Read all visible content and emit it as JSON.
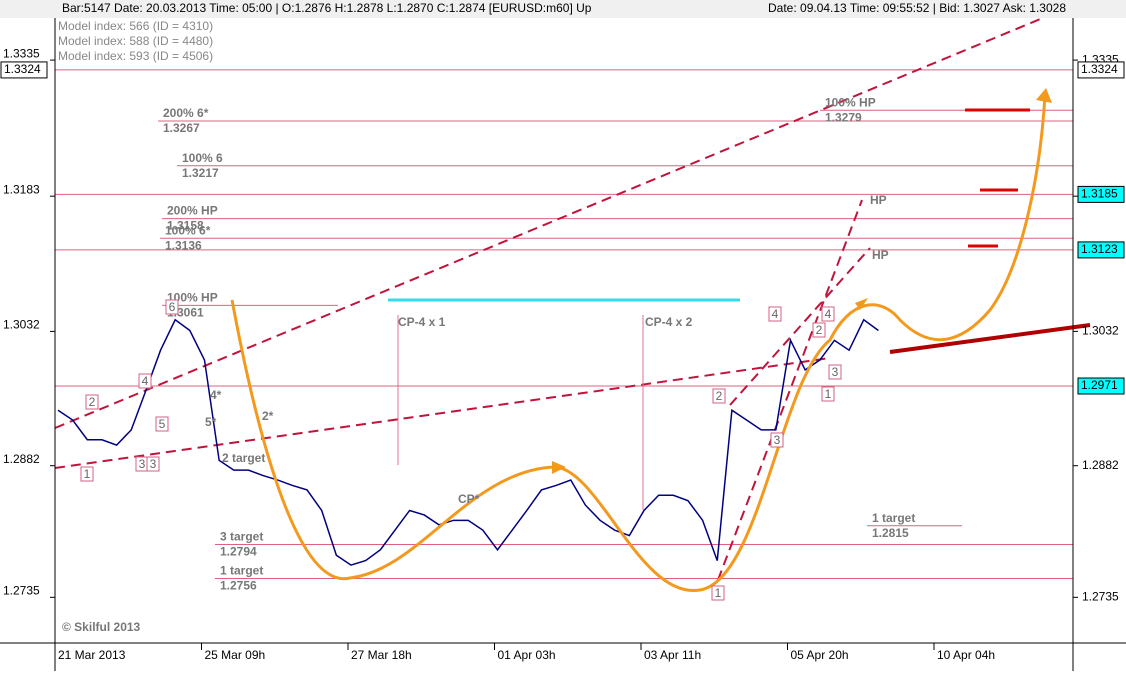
{
  "chart_data": {
    "type": "line",
    "header_left": "Bar:5147  Date: 20.03.2013  Time: 05:00  | O:1.2876 H:1.2878 L:1.2870 C:1.2874   [EURUSD:m60]  Up",
    "header_right": "Date: 09.04.13  Time: 09:55:52  | Bid: 1.3027  Ask: 1.3028",
    "model_lines": [
      "Model index: 566  (ID = 4310)",
      "Model index: 588  (ID = 4480)",
      "Model index: 593  (ID = 4506)"
    ],
    "categories": [
      "21 Mar 2013",
      null,
      null,
      null,
      null,
      null,
      null,
      null,
      null,
      null,
      "25 Mar 09h",
      null,
      null,
      null,
      null,
      null,
      null,
      null,
      null,
      null,
      "27 Mar 18h",
      null,
      null,
      null,
      null,
      null,
      null,
      null,
      null,
      null,
      "01 Apr 03h",
      null,
      null,
      null,
      null,
      null,
      null,
      null,
      null,
      null,
      "03 Apr 11h",
      null,
      null,
      null,
      null,
      null,
      null,
      null,
      null,
      null,
      "05 Apr 20h",
      null,
      null,
      null,
      null,
      null,
      null,
      null,
      null,
      null,
      "10 Apr 04h",
      null,
      null,
      null,
      null,
      null,
      null,
      null,
      null,
      null
    ],
    "series": [
      {
        "name": "EURUSD",
        "color": "#000080",
        "values": [
          1.2944,
          1.2933,
          1.2911,
          1.2911,
          1.2905,
          1.2922,
          1.2966,
          1.3011,
          1.3045,
          1.3033,
          1.3,
          1.2888,
          1.2877,
          1.2877,
          1.2871,
          1.2866,
          1.286,
          1.2855,
          1.2832,
          1.2782,
          1.2771,
          1.2776,
          1.2788,
          1.281,
          1.2832,
          1.2827,
          1.2816,
          1.2821,
          1.2821,
          1.281,
          1.2788,
          1.281,
          1.2832,
          1.2855,
          1.286,
          1.2866,
          1.2838,
          1.2821,
          1.281,
          1.2804,
          1.2832,
          1.2849,
          1.2849,
          1.2843,
          1.2821,
          1.2776,
          1.2944,
          1.2933,
          1.2922,
          1.2922,
          1.3022,
          1.2989,
          1.3,
          1.3022,
          1.3011,
          1.3045,
          1.3033,
          null,
          null,
          null,
          null,
          null,
          null,
          null,
          null,
          null,
          null,
          null,
          null,
          null
        ]
      }
    ],
    "ylim": [
      1.2684,
      1.3382
    ],
    "yticks": [
      1.3335,
      1.3183,
      1.3032,
      1.2882,
      1.2735
    ],
    "price_tags": [
      {
        "value": 1.3324,
        "color": "#ffffff"
      },
      {
        "value": 1.3185,
        "color": "#00ffff"
      },
      {
        "value": 1.3123,
        "color": "#00ffff"
      },
      {
        "value": 1.2971,
        "color": "#00ffff"
      }
    ],
    "levels": [
      {
        "label": "200% 6*",
        "price": 1.3267
      },
      {
        "label": "100% 6",
        "price": 1.3217
      },
      {
        "label": "200% HP",
        "price": 1.3158
      },
      {
        "label": "100% 6*",
        "price": 1.3136
      },
      {
        "label": "100% HP",
        "price": 1.3061
      },
      {
        "label": "100% HP",
        "price": 1.3279
      },
      {
        "label": "3 target",
        "price": 1.2794
      },
      {
        "label": "1 target",
        "price": 1.2756
      },
      {
        "label": "1 target",
        "price": 1.2815
      }
    ],
    "notes": [
      "CP-4 x 1",
      "CP-4 x 2",
      "CP*",
      "HP",
      "HP",
      "2 target",
      "4*",
      "2*",
      "5*",
      "© Skilful 2013"
    ],
    "wave_labels": [
      "1",
      "2",
      "3",
      "3",
      "4",
      "5",
      "6",
      "1",
      "2",
      "3",
      "4",
      "1",
      "2",
      "3",
      "4"
    ]
  }
}
